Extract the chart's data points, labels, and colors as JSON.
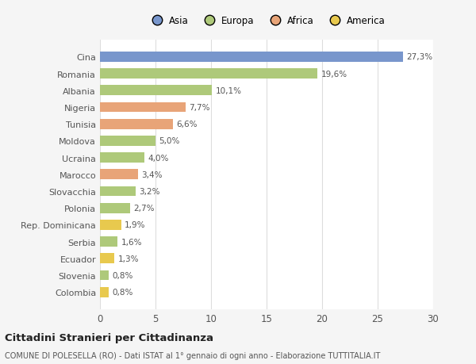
{
  "categories": [
    "Colombia",
    "Slovenia",
    "Ecuador",
    "Serbia",
    "Rep. Dominicana",
    "Polonia",
    "Slovacchia",
    "Marocco",
    "Ucraina",
    "Moldova",
    "Tunisia",
    "Nigeria",
    "Albania",
    "Romania",
    "Cina"
  ],
  "values": [
    0.8,
    0.8,
    1.3,
    1.6,
    1.9,
    2.7,
    3.2,
    3.4,
    4.0,
    5.0,
    6.6,
    7.7,
    10.1,
    19.6,
    27.3
  ],
  "labels": [
    "0,8%",
    "0,8%",
    "1,3%",
    "1,6%",
    "1,9%",
    "2,7%",
    "3,2%",
    "3,4%",
    "4,0%",
    "5,0%",
    "6,6%",
    "7,7%",
    "10,1%",
    "19,6%",
    "27,3%"
  ],
  "colors": [
    "#e8c94e",
    "#aec97a",
    "#e8c94e",
    "#aec97a",
    "#e8c94e",
    "#aec97a",
    "#aec97a",
    "#e8a478",
    "#aec97a",
    "#aec97a",
    "#e8a478",
    "#e8a478",
    "#aec97a",
    "#aec97a",
    "#7896cc"
  ],
  "continent": [
    "America",
    "Europa",
    "America",
    "Europa",
    "America",
    "Europa",
    "Europa",
    "Africa",
    "Europa",
    "Europa",
    "Africa",
    "Africa",
    "Europa",
    "Europa",
    "Asia"
  ],
  "legend_labels": [
    "Asia",
    "Europa",
    "Africa",
    "America"
  ],
  "legend_colors": [
    "#7896cc",
    "#aec97a",
    "#e8a478",
    "#e8c94e"
  ],
  "title1": "Cittadini Stranieri per Cittadinanza",
  "title2": "COMUNE DI POLESELLA (RO) - Dati ISTAT al 1° gennaio di ogni anno - Elaborazione TUTTITALIA.IT",
  "xlim": [
    0,
    30
  ],
  "xticks": [
    0,
    5,
    10,
    15,
    20,
    25,
    30
  ],
  "plot_bg": "#ffffff",
  "fig_bg": "#f5f5f5",
  "bar_height": 0.6
}
